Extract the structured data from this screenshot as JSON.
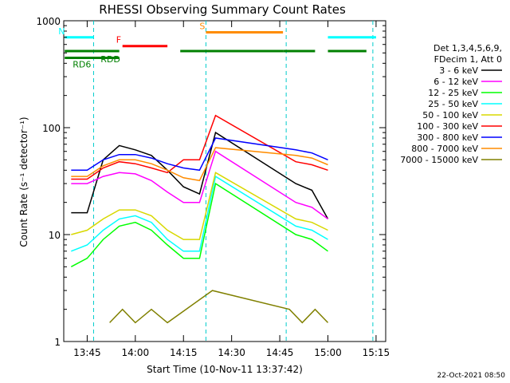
{
  "chart_data": {
    "type": "line",
    "title": "RHESSI Observing Summary Count Rates",
    "xlabel": "Start Time (10-Nov-11 13:37:42)",
    "ylabel": "Count Rate (s⁻¹ detector⁻¹)",
    "yscale": "log",
    "ylim": [
      1,
      1000
    ],
    "xlim": [
      "13:37:42",
      "15:18:00"
    ],
    "x_ticks": [
      "13:45",
      "14:00",
      "14:15",
      "14:30",
      "14:45",
      "15:00",
      "15:15"
    ],
    "y_ticks": [
      "1",
      "10",
      "100",
      "1000"
    ],
    "legend_header": [
      "Det 1,3,4,5,6,9,",
      "FDecim 1, Att 0"
    ],
    "legend_placement": "right",
    "footer_date": "22-Oct-2021 08:50",
    "series": [
      {
        "name": "3 - 6 keV",
        "color": "#000000",
        "points": [
          [
            "13:40",
            16
          ],
          [
            "13:45",
            16
          ],
          [
            "13:50",
            50
          ],
          [
            "13:55",
            68
          ],
          [
            "14:00",
            62
          ],
          [
            "14:05",
            55
          ],
          [
            "14:10",
            40
          ],
          [
            "14:15",
            28
          ],
          [
            "14:20",
            24
          ],
          [
            "14:25",
            90
          ],
          [
            "14:50",
            30
          ],
          [
            "14:55",
            26
          ],
          [
            "15:00",
            14
          ]
        ]
      },
      {
        "name": "6 - 12 keV",
        "color": "#ff00ff",
        "points": [
          [
            "13:40",
            30
          ],
          [
            "13:45",
            30
          ],
          [
            "13:50",
            35
          ],
          [
            "13:55",
            38
          ],
          [
            "14:00",
            37
          ],
          [
            "14:05",
            32
          ],
          [
            "14:10",
            25
          ],
          [
            "14:15",
            20
          ],
          [
            "14:20",
            20
          ],
          [
            "14:25",
            60
          ],
          [
            "14:50",
            20
          ],
          [
            "14:55",
            18
          ],
          [
            "15:00",
            14
          ]
        ]
      },
      {
        "name": "12 - 25 keV",
        "color": "#00ff00",
        "points": [
          [
            "13:40",
            5
          ],
          [
            "13:45",
            6
          ],
          [
            "13:50",
            9
          ],
          [
            "13:55",
            12
          ],
          [
            "14:00",
            13
          ],
          [
            "14:05",
            11
          ],
          [
            "14:10",
            8
          ],
          [
            "14:15",
            6
          ],
          [
            "14:20",
            6
          ],
          [
            "14:25",
            30
          ],
          [
            "14:50",
            10
          ],
          [
            "14:55",
            9
          ],
          [
            "15:00",
            7
          ]
        ]
      },
      {
        "name": "25 - 50 keV",
        "color": "#00ffff",
        "points": [
          [
            "13:40",
            7
          ],
          [
            "13:45",
            8
          ],
          [
            "13:50",
            11
          ],
          [
            "13:55",
            14
          ],
          [
            "14:00",
            15
          ],
          [
            "14:05",
            13
          ],
          [
            "14:10",
            9
          ],
          [
            "14:15",
            7
          ],
          [
            "14:20",
            7
          ],
          [
            "14:25",
            35
          ],
          [
            "14:50",
            12
          ],
          [
            "14:55",
            11
          ],
          [
            "15:00",
            9
          ]
        ]
      },
      {
        "name": "50 - 100 keV",
        "color": "#d8d800",
        "points": [
          [
            "13:40",
            10
          ],
          [
            "13:45",
            11
          ],
          [
            "13:50",
            14
          ],
          [
            "13:55",
            17
          ],
          [
            "14:00",
            17
          ],
          [
            "14:05",
            15
          ],
          [
            "14:10",
            11
          ],
          [
            "14:15",
            9
          ],
          [
            "14:20",
            9
          ],
          [
            "14:25",
            38
          ],
          [
            "14:50",
            14
          ],
          [
            "14:55",
            13
          ],
          [
            "15:00",
            11
          ]
        ]
      },
      {
        "name": "100 - 300 keV",
        "color": "#ff0000",
        "points": [
          [
            "13:40",
            33
          ],
          [
            "13:45",
            33
          ],
          [
            "13:50",
            42
          ],
          [
            "13:55",
            48
          ],
          [
            "14:00",
            46
          ],
          [
            "14:05",
            42
          ],
          [
            "14:10",
            38
          ],
          [
            "14:15",
            50
          ],
          [
            "14:20",
            50
          ],
          [
            "14:25",
            130
          ],
          [
            "14:50",
            48
          ],
          [
            "14:55",
            45
          ],
          [
            "15:00",
            40
          ]
        ]
      },
      {
        "name": "300 - 800 keV",
        "color": "#0000ff",
        "points": [
          [
            "13:40",
            40
          ],
          [
            "13:45",
            40
          ],
          [
            "13:50",
            50
          ],
          [
            "13:55",
            56
          ],
          [
            "14:00",
            56
          ],
          [
            "14:05",
            52
          ],
          [
            "14:10",
            46
          ],
          [
            "14:15",
            42
          ],
          [
            "14:20",
            40
          ],
          [
            "14:25",
            80
          ],
          [
            "14:50",
            62
          ],
          [
            "14:55",
            58
          ],
          [
            "15:00",
            50
          ]
        ]
      },
      {
        "name": "800 - 7000 keV",
        "color": "#ff8c00",
        "points": [
          [
            "13:40",
            35
          ],
          [
            "13:45",
            35
          ],
          [
            "13:50",
            44
          ],
          [
            "13:55",
            50
          ],
          [
            "14:00",
            50
          ],
          [
            "14:05",
            46
          ],
          [
            "14:10",
            40
          ],
          [
            "14:15",
            34
          ],
          [
            "14:20",
            32
          ],
          [
            "14:25",
            65
          ],
          [
            "14:50",
            55
          ],
          [
            "14:55",
            52
          ],
          [
            "15:00",
            45
          ]
        ]
      },
      {
        "name": "7000 - 15000 keV",
        "color": "#808000",
        "points": [
          [
            "13:52",
            1.5
          ],
          [
            "13:56",
            2
          ],
          [
            "14:00",
            1.5
          ],
          [
            "14:05",
            2
          ],
          [
            "14:10",
            1.5
          ],
          [
            "14:24",
            3
          ],
          [
            "14:48",
            2
          ],
          [
            "14:52",
            1.5
          ],
          [
            "14:56",
            2
          ],
          [
            "15:00",
            1.5
          ]
        ]
      }
    ],
    "state_bars": [
      {
        "label": "N",
        "color": "#00ffff",
        "level": 700,
        "segments": [
          [
            "13:38",
            "13:47"
          ],
          [
            "15:00",
            "15:15"
          ]
        ]
      },
      {
        "label": "F",
        "color": "#ff0000",
        "level": 580,
        "segments": [
          [
            "13:56",
            "14:10"
          ]
        ]
      },
      {
        "label": "S",
        "color": "#ff8c00",
        "level": 780,
        "segments": [
          [
            "14:22",
            "14:46"
          ]
        ]
      },
      {
        "label": "RDD",
        "color": "#008000",
        "level": 520,
        "segments": [
          [
            "13:38",
            "13:55"
          ],
          [
            "14:14",
            "14:46"
          ],
          [
            "14:46",
            "14:56"
          ],
          [
            "15:00",
            "15:12"
          ]
        ]
      },
      {
        "label": "RD6",
        "color": "#008000",
        "level": 450,
        "segments": [
          [
            "13:38",
            "13:55"
          ]
        ]
      }
    ],
    "gaps": [
      [
        "13:47",
        "13:48"
      ],
      [
        "14:22",
        "14:23"
      ],
      [
        "14:47",
        "14:48"
      ],
      [
        "15:14",
        "15:15"
      ]
    ]
  }
}
